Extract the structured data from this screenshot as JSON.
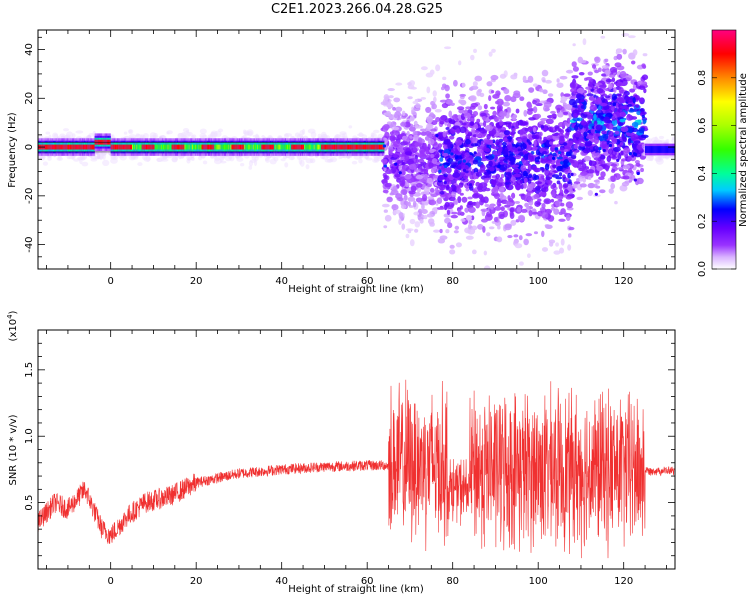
{
  "title": "C2E1.2023.266.04.28.G25",
  "chart_data": [
    {
      "type": "heatmap",
      "xlabel": "Height of straight line (km)",
      "ylabel": "Frequency (Hz)",
      "xlim": [
        -17,
        132
      ],
      "ylim": [
        -50,
        48
      ],
      "xticks": [
        0,
        20,
        40,
        60,
        80,
        100,
        120
      ],
      "yticks": [
        -40,
        -20,
        0,
        20,
        40
      ],
      "colorbar": {
        "label": "Normalized spectral amplitude",
        "range": [
          0.0,
          1.0
        ],
        "ticks": [
          0.0,
          0.2,
          0.4,
          0.6,
          0.8
        ],
        "colormap": [
          "#ffffff",
          "#d9b3ff",
          "#9933ff",
          "#6600ff",
          "#0000ff",
          "#00ccff",
          "#00ff66",
          "#33ff00",
          "#ffff00",
          "#ff8800",
          "#ff0000",
          "#ff0080"
        ]
      },
      "segments": [
        {
          "x_range": [
            -17,
            64
          ],
          "frequency_center": 0,
          "frequency_spread": 4,
          "peak_amplitude": 0.9
        },
        {
          "x_range": [
            64,
            77
          ],
          "frequency_center": -5,
          "frequency_spread": 25,
          "peak_amplitude": 0.25
        },
        {
          "x_range": [
            77,
            108
          ],
          "frequency_center": -5,
          "frequency_spread": 30,
          "peak_amplitude": 0.35
        },
        {
          "x_range": [
            108,
            125
          ],
          "frequency_center": 10,
          "frequency_spread": 25,
          "peak_amplitude": 0.4
        },
        {
          "x_range": [
            125,
            132
          ],
          "frequency_center": -1,
          "frequency_spread": 3,
          "peak_amplitude": 0.4
        }
      ]
    },
    {
      "type": "line",
      "xlabel": "Height of straight line (km)",
      "ylabel": "SNR (10 * v/v)",
      "scale_label": "(x10",
      "scale_exponent": "4",
      "scale_close": ")",
      "xlim": [
        -17,
        132
      ],
      "ylim": [
        0.0,
        1.8
      ],
      "xticks": [
        0,
        20,
        40,
        60,
        80,
        100,
        120
      ],
      "yticks": [
        0.5,
        1.0,
        1.5
      ],
      "ytick_labels": [
        "0.5",
        "1.0",
        "1.5"
      ],
      "color": "#f03030",
      "trend": {
        "x": [
          -17,
          -13,
          -10,
          -6,
          -2,
          0,
          4,
          8,
          14,
          20,
          30,
          40,
          50,
          60,
          65
        ],
        "y": [
          0.35,
          0.5,
          0.45,
          0.6,
          0.3,
          0.25,
          0.4,
          0.5,
          0.55,
          0.65,
          0.72,
          0.75,
          0.77,
          0.78,
          0.78
        ]
      },
      "noisy_regions": [
        {
          "x_range": [
            65,
            79
          ],
          "center": 0.8,
          "amplitude": 0.7
        },
        {
          "x_range": [
            79,
            84
          ],
          "center": 0.6,
          "amplitude": 0.3
        },
        {
          "x_range": [
            84,
            125
          ],
          "center": 0.75,
          "amplitude": 0.7
        },
        {
          "x_range": [
            125,
            132
          ],
          "center": 0.74,
          "amplitude": 0.04
        }
      ]
    }
  ]
}
